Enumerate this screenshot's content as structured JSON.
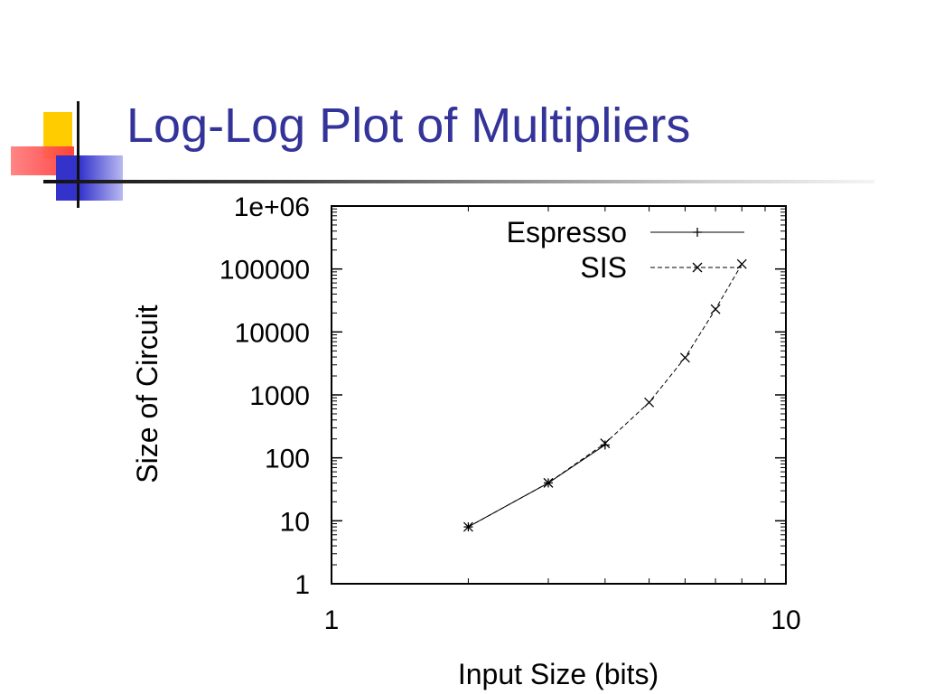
{
  "slide": {
    "title": "Log-Log Plot of Multipliers",
    "title_color": "#333399"
  },
  "chart_data": {
    "type": "line",
    "xlabel": "Input Size (bits)",
    "ylabel": "Size of Circuit",
    "xscale": "log",
    "yscale": "log",
    "xlim": [
      1,
      10
    ],
    "ylim": [
      1,
      1000000
    ],
    "xticks": [
      {
        "value": 1,
        "label": "1"
      },
      {
        "value": 10,
        "label": "10"
      }
    ],
    "yticks": [
      {
        "value": 1,
        "label": "1"
      },
      {
        "value": 10,
        "label": "10"
      },
      {
        "value": 100,
        "label": "100"
      },
      {
        "value": 1000,
        "label": "1000"
      },
      {
        "value": 10000,
        "label": "10000"
      },
      {
        "value": 100000,
        "label": "100000"
      },
      {
        "value": 1000000,
        "label": "1e+06"
      }
    ],
    "legend_position": "top-right",
    "grid": false,
    "series": [
      {
        "name": "Espresso",
        "marker": "plus",
        "line": "solid",
        "x": [
          2,
          3,
          4
        ],
        "y": [
          8,
          40,
          160
        ]
      },
      {
        "name": "SIS",
        "marker": "cross",
        "line": "dashed",
        "x": [
          2,
          3,
          4,
          5,
          6,
          7,
          8
        ],
        "y": [
          8,
          40,
          170,
          760,
          3900,
          23000,
          120000
        ]
      }
    ]
  }
}
